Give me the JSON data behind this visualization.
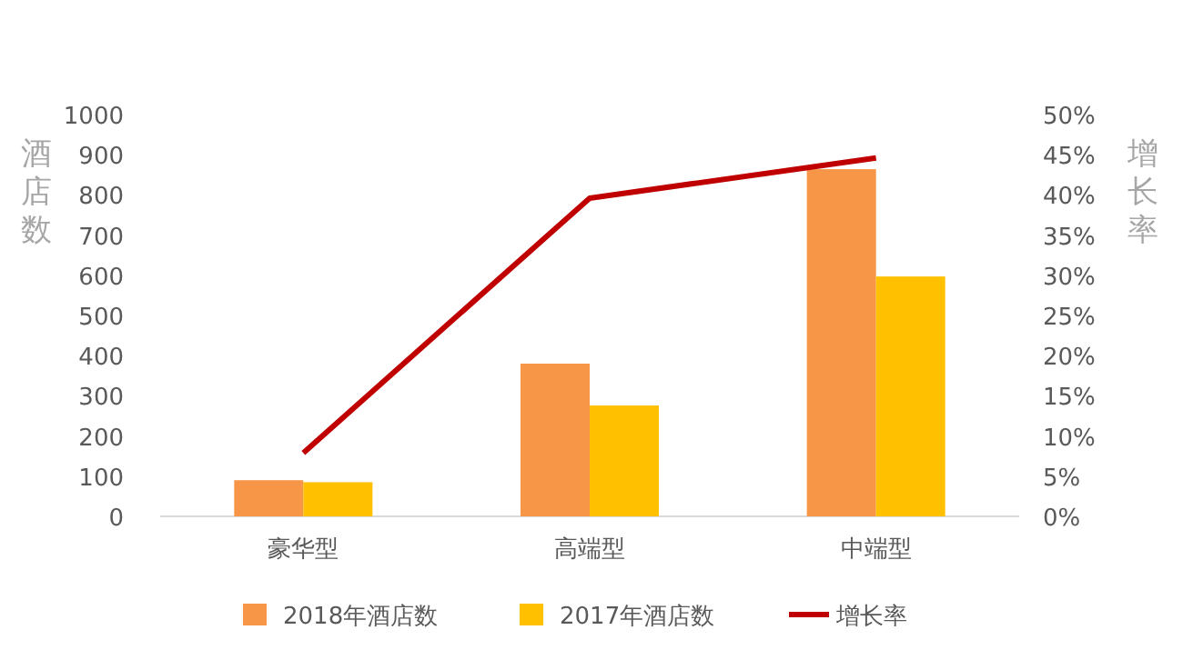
{
  "chart_data": {
    "type": "bar",
    "categories": [
      "豪华型",
      "高端型",
      "中端型"
    ],
    "ylabel": "酒店数",
    "y2label": "增长率",
    "ylim": [
      0,
      1000
    ],
    "yticks": [
      0,
      100,
      200,
      300,
      400,
      500,
      600,
      700,
      800,
      900,
      1000
    ],
    "y2lim": [
      0,
      50
    ],
    "y2ticks": [
      {
        "value": 0,
        "label": "0%"
      },
      {
        "value": 5,
        "label": "5%"
      },
      {
        "value": 10,
        "label": "10%"
      },
      {
        "value": 15,
        "label": "15%"
      },
      {
        "value": 20,
        "label": "20%"
      },
      {
        "value": 25,
        "label": "25%"
      },
      {
        "value": 30,
        "label": "30%"
      },
      {
        "value": 35,
        "label": "35%"
      },
      {
        "value": 40,
        "label": "40%"
      },
      {
        "value": 45,
        "label": "45%"
      },
      {
        "value": 50,
        "label": "50%"
      }
    ],
    "series": [
      {
        "name": "2018年酒店数",
        "color": "#f79646",
        "values": [
          90,
          380,
          864
        ]
      },
      {
        "name": "2017年酒店数",
        "color": "#ffc000",
        "values": [
          85,
          276,
          597
        ]
      },
      {
        "name": "增长率",
        "type": "line",
        "axis": "y2",
        "color": "#c00000",
        "values": [
          7.9,
          39.6,
          44.6
        ]
      }
    ],
    "legend": "bottom",
    "grid": false
  }
}
